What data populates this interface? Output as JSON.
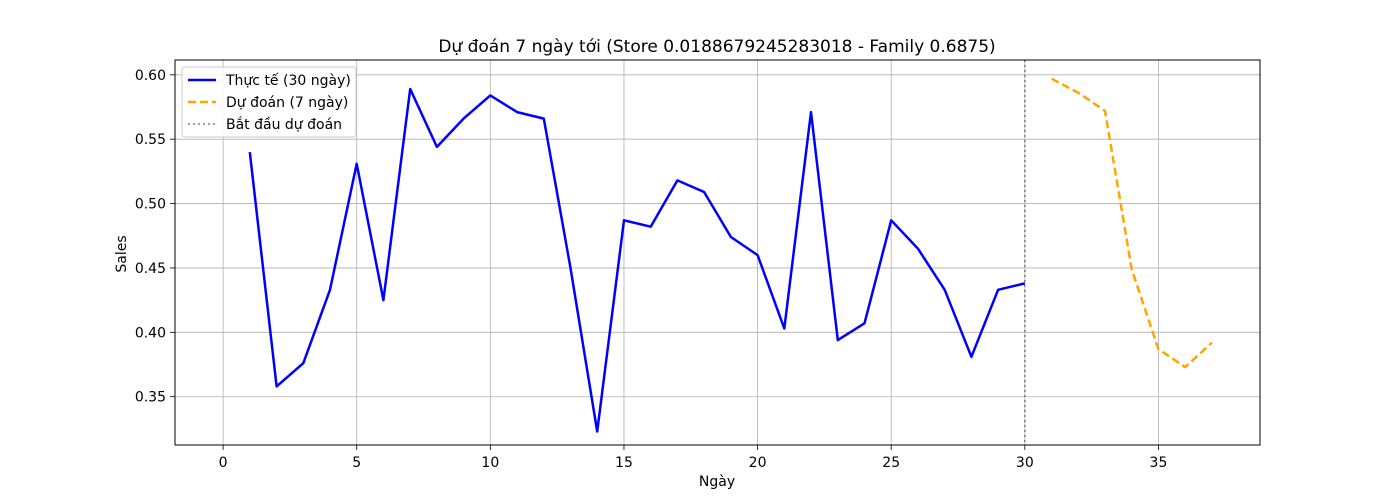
{
  "chart_data": {
    "type": "line",
    "title": "Dự đoán 7 ngày tới (Store 0.0188679245283018 - Family 0.6875)",
    "xlabel": "Ngày",
    "ylabel": "Sales",
    "xlim": [
      -1.8,
      38.8
    ],
    "ylim": [
      0.3125,
      0.6115
    ],
    "xticks": [
      0,
      5,
      10,
      15,
      20,
      25,
      30,
      35
    ],
    "yticks": [
      0.35,
      0.4,
      0.45,
      0.5,
      0.55,
      0.6
    ],
    "ytick_labels": [
      "0.35",
      "0.40",
      "0.45",
      "0.50",
      "0.55",
      "0.60"
    ],
    "grid": true,
    "legend_position": "top-left",
    "series": [
      {
        "name": "Thực tế (30 ngày)",
        "style": "solid",
        "color": "#0000ff",
        "x": [
          1,
          2,
          3,
          4,
          5,
          6,
          7,
          8,
          9,
          10,
          11,
          12,
          13,
          14,
          15,
          16,
          17,
          18,
          19,
          20,
          21,
          22,
          23,
          24,
          25,
          26,
          27,
          28,
          29,
          30
        ],
        "y": [
          0.54,
          0.358,
          0.376,
          0.433,
          0.531,
          0.425,
          0.589,
          0.544,
          0.566,
          0.584,
          0.571,
          0.566,
          0.45,
          0.323,
          0.487,
          0.482,
          0.518,
          0.509,
          0.474,
          0.46,
          0.403,
          0.571,
          0.394,
          0.407,
          0.487,
          0.465,
          0.433,
          0.381,
          0.433,
          0.438
        ]
      },
      {
        "name": "Dự đoán (7 ngày)",
        "style": "dashed",
        "color": "#ffa500",
        "x": [
          31,
          32,
          33,
          34,
          35,
          36,
          37
        ],
        "y": [
          0.597,
          0.586,
          0.572,
          0.449,
          0.387,
          0.373,
          0.392
        ]
      }
    ],
    "vline": {
      "x": 30,
      "name": "Bắt đầu dự đoán",
      "style": "dotted",
      "color": "#808080"
    }
  }
}
